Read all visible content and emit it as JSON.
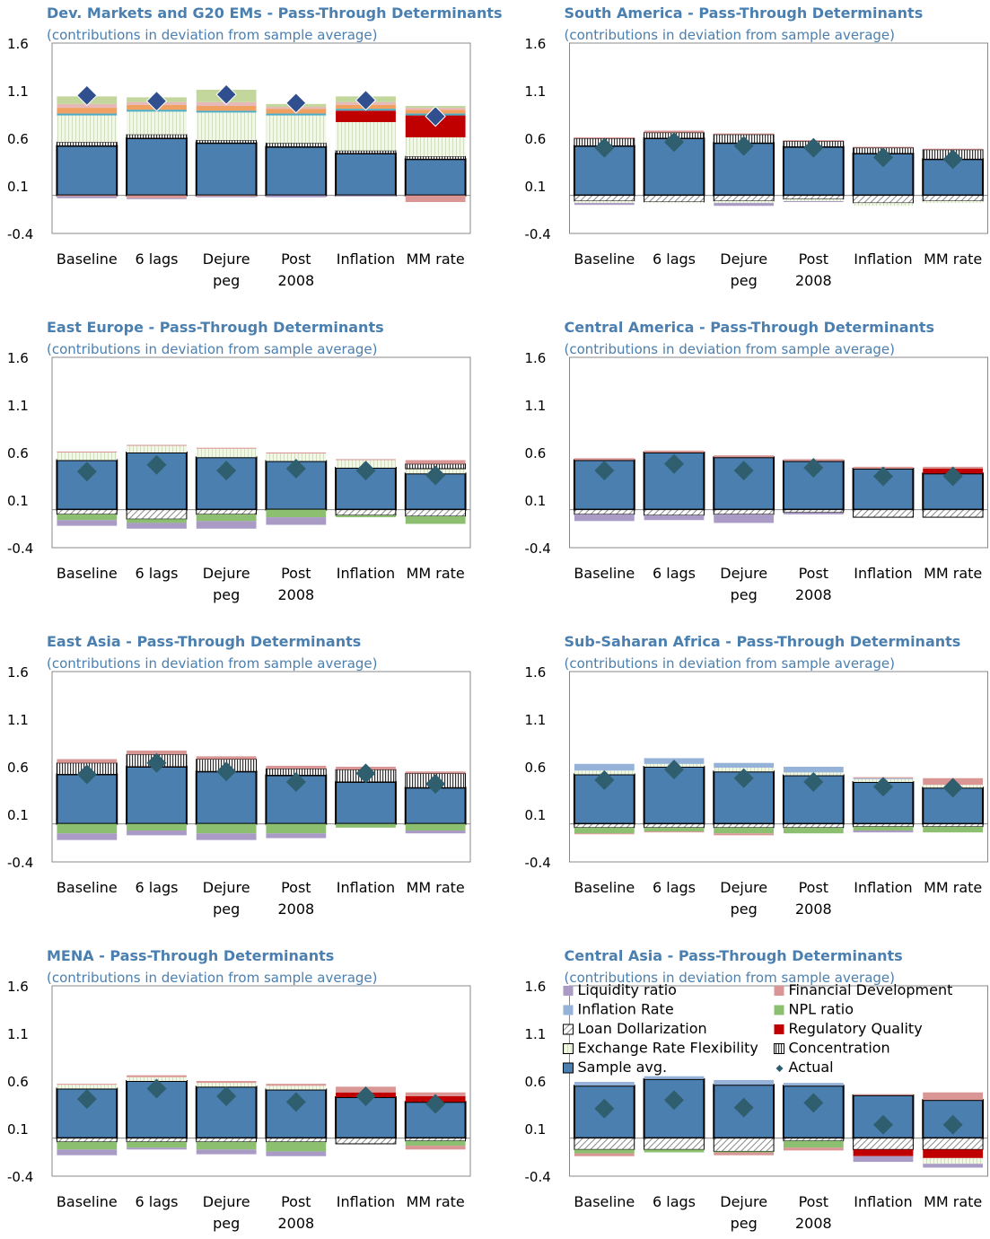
{
  "colors": {
    "sample_avg": "#4a7fb0",
    "liquidity": "#a99bc6",
    "inflation_rate": "#95b2d9",
    "loan_dollarization": "#ffffff",
    "exchange_rate_flex": "#eef5e2",
    "financial_dev": "#d99694",
    "npl": "#8cc070",
    "regulatory": "#c00000",
    "concentration": "#ffffff",
    "actual": "#2f5f6e",
    "actual_dev": "#2f4f8f",
    "title": "#4a7fb0",
    "other_light_green": "#c3d69b",
    "other_orange": "#f0a060",
    "other_salmon": "#e6b8b7",
    "other_teal": "#4bacc6"
  },
  "legend": [
    {
      "key": "liquidity",
      "label": "Liquidity ratio",
      "swatch": "liquidity"
    },
    {
      "key": "financial_dev",
      "label": "Financial Development",
      "swatch": "financial_dev"
    },
    {
      "key": "inflation_rate",
      "label": "Inflation Rate",
      "swatch": "inflation_rate"
    },
    {
      "key": "npl",
      "label": "NPL ratio",
      "swatch": "npl"
    },
    {
      "key": "loan_dollarization",
      "label": "Loan Dollarization",
      "swatch": "loan_dollarization"
    },
    {
      "key": "regulatory",
      "label": "Regulatory Quality",
      "swatch": "regulatory"
    },
    {
      "key": "exchange_rate_flex",
      "label": "Exchange Rate Flexibility",
      "swatch": "exchange_rate_flex"
    },
    {
      "key": "concentration",
      "label": "Concentration",
      "swatch": "concentration"
    },
    {
      "key": "sample_avg",
      "label": "Sample avg.",
      "swatch": "sample_avg"
    },
    {
      "key": "actual",
      "label": "Actual",
      "swatch": "actual"
    }
  ],
  "chart_data": [
    {
      "type": "bar",
      "stacked": true,
      "title": "Dev. Markets and G20 EMs - Pass-Through Determinants",
      "subtitle": "(contributions in deviation from sample average)",
      "categories": [
        "Baseline",
        "6 lags",
        "Dejure\npeg",
        "Post\n2008",
        "Inflation",
        "MM rate"
      ],
      "yticks": [
        "1.6",
        "1.1",
        "0.6",
        "0.1",
        "-0.4"
      ],
      "ylim": [
        -0.4,
        1.6
      ],
      "actual": [
        1.05,
        0.99,
        1.06,
        0.97,
        1.0,
        0.83
      ],
      "series": [
        {
          "key": "sample_avg",
          "values": [
            0.52,
            0.6,
            0.55,
            0.51,
            0.44,
            0.38
          ]
        },
        {
          "key": "concentration",
          "values": [
            0.04,
            0.04,
            0.03,
            0.04,
            0.03,
            0.03
          ]
        },
        {
          "key": "exchange_rate_flex",
          "values": [
            0.28,
            0.24,
            0.29,
            0.29,
            0.3,
            0.2
          ]
        },
        {
          "key": "regulatory",
          "values": [
            0.0,
            0.0,
            0.0,
            0.0,
            0.12,
            0.23
          ]
        },
        {
          "key": "other_teal",
          "values": [
            0.02,
            0.02,
            0.02,
            0.02,
            0.02,
            0.02
          ]
        },
        {
          "key": "other_orange",
          "values": [
            0.06,
            0.05,
            0.05,
            0.05,
            0.04,
            0.04
          ]
        },
        {
          "key": "other_salmon",
          "values": [
            0.04,
            0.03,
            0.04,
            0.02,
            0.03,
            0.02
          ]
        },
        {
          "key": "other_light_green",
          "values": [
            0.08,
            0.05,
            0.13,
            0.03,
            0.06,
            0.02
          ]
        },
        {
          "key": "financial_dev",
          "values": [
            -0.01,
            -0.03,
            -0.01,
            0.0,
            0.0,
            -0.07
          ]
        },
        {
          "key": "liquidity",
          "values": [
            -0.02,
            -0.01,
            -0.01,
            -0.02,
            -0.01,
            0.0
          ]
        }
      ]
    },
    {
      "type": "bar",
      "stacked": true,
      "title": "South America - Pass-Through Determinants",
      "subtitle": "(contributions in deviation from sample average)",
      "categories": [
        "Baseline",
        "6 lags",
        "Dejure\npeg",
        "Post\n2008",
        "Inflation",
        "MM rate"
      ],
      "yticks": [
        "1.6",
        "1.1",
        "0.6",
        "0.1",
        "-0.4"
      ],
      "ylim": [
        -0.4,
        1.6
      ],
      "actual": [
        0.5,
        0.56,
        0.52,
        0.5,
        0.4,
        0.38
      ],
      "series": [
        {
          "key": "sample_avg",
          "values": [
            0.52,
            0.6,
            0.55,
            0.51,
            0.44,
            0.38
          ]
        },
        {
          "key": "concentration",
          "values": [
            0.08,
            0.06,
            0.09,
            0.06,
            0.06,
            0.1
          ]
        },
        {
          "key": "financial_dev",
          "values": [
            0.01,
            0.02,
            0.01,
            0.01,
            0.01,
            0.01
          ]
        },
        {
          "key": "loan_dollarization",
          "values": [
            -0.06,
            -0.07,
            -0.06,
            -0.04,
            -0.08,
            -0.06
          ]
        },
        {
          "key": "exchange_rate_flex",
          "values": [
            -0.02,
            -0.01,
            -0.02,
            -0.02,
            -0.03,
            -0.02
          ]
        },
        {
          "key": "liquidity",
          "values": [
            -0.02,
            0.0,
            -0.03,
            -0.01,
            0.0,
            0.0
          ]
        }
      ]
    },
    {
      "type": "bar",
      "stacked": true,
      "title": "East Europe - Pass-Through Determinants",
      "subtitle": "(contributions in deviation from sample average)",
      "categories": [
        "Baseline",
        "6 lags",
        "Dejure\npeg",
        "Post\n2008",
        "Inflation",
        "MM rate"
      ],
      "yticks": [
        "1.6",
        "1.1",
        "0.6",
        "0.1",
        "-0.4"
      ],
      "ylim": [
        -0.4,
        1.6
      ],
      "actual": [
        0.4,
        0.47,
        0.41,
        0.43,
        0.41,
        0.36
      ],
      "series": [
        {
          "key": "sample_avg",
          "values": [
            0.52,
            0.6,
            0.55,
            0.51,
            0.44,
            0.38
          ]
        },
        {
          "key": "exchange_rate_flex",
          "values": [
            0.08,
            0.07,
            0.09,
            0.08,
            0.08,
            0.05
          ]
        },
        {
          "key": "concentration",
          "values": [
            0.0,
            0.0,
            0.0,
            0.0,
            0.0,
            0.05
          ]
        },
        {
          "key": "financial_dev",
          "values": [
            0.01,
            0.01,
            0.01,
            0.01,
            0.01,
            0.04
          ]
        },
        {
          "key": "loan_dollarization",
          "values": [
            -0.05,
            -0.1,
            -0.05,
            0.0,
            -0.06,
            -0.07
          ]
        },
        {
          "key": "npl",
          "values": [
            -0.06,
            -0.04,
            -0.07,
            -0.08,
            -0.02,
            -0.08
          ]
        },
        {
          "key": "liquidity",
          "values": [
            -0.06,
            -0.06,
            -0.08,
            -0.08,
            0.0,
            0.0
          ]
        }
      ]
    },
    {
      "type": "bar",
      "stacked": true,
      "title": "Central America - Pass-Through Determinants",
      "subtitle": "(contributions in deviation from sample average)",
      "categories": [
        "Baseline",
        "6 lags",
        "Dejure\npeg",
        "Post\n2008",
        "Inflation",
        "MM rate"
      ],
      "yticks": [
        "1.6",
        "1.1",
        "0.6",
        "0.1",
        "-0.4"
      ],
      "ylim": [
        -0.4,
        1.6
      ],
      "actual": [
        0.41,
        0.48,
        0.41,
        0.44,
        0.35,
        0.35
      ],
      "series": [
        {
          "key": "sample_avg",
          "values": [
            0.52,
            0.6,
            0.55,
            0.51,
            0.43,
            0.38
          ]
        },
        {
          "key": "regulatory",
          "values": [
            0.0,
            0.0,
            0.0,
            0.0,
            0.0,
            0.05
          ]
        },
        {
          "key": "financial_dev",
          "values": [
            0.02,
            0.02,
            0.02,
            0.02,
            0.02,
            0.02
          ]
        },
        {
          "key": "loan_dollarization",
          "values": [
            -0.05,
            -0.06,
            -0.05,
            -0.03,
            -0.08,
            -0.08
          ]
        },
        {
          "key": "liquidity",
          "values": [
            -0.07,
            -0.05,
            -0.09,
            -0.02,
            0.0,
            0.0
          ]
        }
      ]
    },
    {
      "type": "bar",
      "stacked": true,
      "title": "East Asia - Pass-Through Determinants",
      "subtitle": "(contributions in deviation from sample average)",
      "categories": [
        "Baseline",
        "6 lags",
        "Dejure\npeg",
        "Post\n2008",
        "Inflation",
        "MM rate"
      ],
      "yticks": [
        "1.6",
        "1.1",
        "0.6",
        "0.1",
        "-0.4"
      ],
      "ylim": [
        -0.4,
        1.6
      ],
      "actual": [
        0.52,
        0.64,
        0.55,
        0.44,
        0.53,
        0.42
      ],
      "series": [
        {
          "key": "sample_avg",
          "values": [
            0.52,
            0.6,
            0.55,
            0.51,
            0.44,
            0.38
          ]
        },
        {
          "key": "concentration",
          "values": [
            0.12,
            0.13,
            0.13,
            0.07,
            0.13,
            0.15
          ]
        },
        {
          "key": "financial_dev",
          "values": [
            0.04,
            0.04,
            0.03,
            0.03,
            0.03,
            0.02
          ]
        },
        {
          "key": "npl",
          "values": [
            -0.1,
            -0.07,
            -0.1,
            -0.1,
            -0.04,
            -0.07
          ]
        },
        {
          "key": "liquidity",
          "values": [
            -0.07,
            -0.05,
            -0.07,
            -0.05,
            0.0,
            -0.03
          ]
        }
      ]
    },
    {
      "type": "bar",
      "stacked": true,
      "title": "Sub-Saharan Africa - Pass-Through Determinants",
      "subtitle": "(contributions in deviation from sample average)",
      "categories": [
        "Baseline",
        "6 lags",
        "Dejure\npeg",
        "Post\n2008",
        "Inflation",
        "MM rate"
      ],
      "yticks": [
        "1.6",
        "1.1",
        "0.6",
        "0.1",
        "-0.4"
      ],
      "ylim": [
        -0.4,
        1.6
      ],
      "actual": [
        0.46,
        0.57,
        0.48,
        0.44,
        0.39,
        0.38
      ],
      "series": [
        {
          "key": "sample_avg",
          "values": [
            0.52,
            0.6,
            0.55,
            0.51,
            0.44,
            0.38
          ]
        },
        {
          "key": "exchange_rate_flex",
          "values": [
            0.04,
            0.03,
            0.04,
            0.03,
            0.03,
            0.03
          ]
        },
        {
          "key": "inflation_rate",
          "values": [
            0.07,
            0.06,
            0.05,
            0.06,
            0.01,
            0.0
          ]
        },
        {
          "key": "financial_dev",
          "values": [
            0.0,
            0.0,
            0.0,
            0.0,
            0.01,
            0.07
          ]
        },
        {
          "key": "loan_dollarization",
          "values": [
            -0.04,
            -0.04,
            -0.04,
            -0.04,
            -0.03,
            -0.03
          ]
        },
        {
          "key": "npl",
          "values": [
            -0.06,
            -0.04,
            -0.06,
            -0.06,
            -0.04,
            -0.06
          ]
        },
        {
          "key": "financial_dev",
          "values": [
            -0.01,
            -0.01,
            -0.02,
            0.0,
            0.0,
            0.0
          ]
        },
        {
          "key": "liquidity",
          "values": [
            0.0,
            0.0,
            0.0,
            0.0,
            -0.02,
            0.0
          ]
        }
      ]
    },
    {
      "type": "bar",
      "stacked": true,
      "title": "MENA - Pass-Through Determinants",
      "subtitle": "(contributions in deviation from sample average)",
      "categories": [
        "Baseline",
        "6 lags",
        "Dejure\npeg",
        "Post\n2008",
        "Inflation",
        "MM rate"
      ],
      "yticks": [
        "1.6",
        "1.1",
        "0.6",
        "0.1",
        "-0.4"
      ],
      "ylim": [
        -0.4,
        1.6
      ],
      "actual": [
        0.41,
        0.52,
        0.44,
        0.38,
        0.44,
        0.36
      ],
      "series": [
        {
          "key": "sample_avg",
          "values": [
            0.52,
            0.6,
            0.54,
            0.51,
            0.43,
            0.38
          ]
        },
        {
          "key": "regulatory",
          "values": [
            0.0,
            0.0,
            0.0,
            0.0,
            0.05,
            0.06
          ]
        },
        {
          "key": "exchange_rate_flex",
          "values": [
            0.04,
            0.04,
            0.04,
            0.04,
            0.0,
            0.0
          ]
        },
        {
          "key": "financial_dev",
          "values": [
            0.01,
            0.02,
            0.02,
            0.02,
            0.06,
            0.04
          ]
        },
        {
          "key": "loan_dollarization",
          "values": [
            -0.04,
            -0.04,
            -0.04,
            -0.04,
            -0.06,
            -0.03
          ]
        },
        {
          "key": "npl",
          "values": [
            -0.08,
            -0.06,
            -0.08,
            -0.1,
            0.0,
            -0.05
          ]
        },
        {
          "key": "financial_dev",
          "values": [
            0.0,
            0.0,
            0.0,
            0.0,
            0.0,
            -0.04
          ]
        },
        {
          "key": "liquidity",
          "values": [
            -0.06,
            -0.02,
            -0.05,
            -0.05,
            0.0,
            0.0
          ]
        }
      ]
    },
    {
      "type": "bar",
      "stacked": true,
      "title": "Central Asia - Pass-Through Determinants",
      "subtitle": "(contributions in deviation from sample average)",
      "categories": [
        "Baseline",
        "6 lags",
        "Dejure\npeg",
        "Post\n2008",
        "Inflation",
        "MM rate"
      ],
      "yticks": [
        "1.6",
        "1.1",
        "0.6",
        "0.1",
        "-0.4"
      ],
      "ylim": [
        -0.4,
        1.6
      ],
      "legend_position": "top",
      "actual": [
        0.31,
        0.4,
        0.32,
        0.37,
        0.14,
        0.14
      ],
      "series": [
        {
          "key": "sample_avg",
          "values": [
            0.55,
            0.62,
            0.56,
            0.55,
            0.45,
            0.4
          ]
        },
        {
          "key": "inflation_rate",
          "values": [
            0.04,
            0.03,
            0.05,
            0.03,
            0.0,
            0.0
          ]
        },
        {
          "key": "financial_dev",
          "values": [
            0.0,
            0.0,
            0.0,
            0.0,
            0.01,
            0.08
          ]
        },
        {
          "key": "loan_dollarization",
          "values": [
            -0.12,
            -0.12,
            -0.14,
            -0.03,
            -0.12,
            -0.12
          ]
        },
        {
          "key": "npl",
          "values": [
            -0.04,
            -0.03,
            -0.01,
            -0.07,
            0.0,
            0.0
          ]
        },
        {
          "key": "regulatory",
          "values": [
            0.0,
            0.0,
            0.0,
            0.0,
            -0.07,
            -0.09
          ]
        },
        {
          "key": "exchange_rate_flex",
          "values": [
            0.0,
            0.0,
            0.0,
            0.0,
            0.0,
            -0.06
          ]
        },
        {
          "key": "financial_dev",
          "values": [
            -0.03,
            0.0,
            -0.03,
            -0.03,
            0.0,
            0.0
          ]
        },
        {
          "key": "liquidity",
          "values": [
            0.0,
            0.0,
            0.0,
            0.0,
            -0.06,
            -0.04
          ]
        }
      ]
    }
  ]
}
